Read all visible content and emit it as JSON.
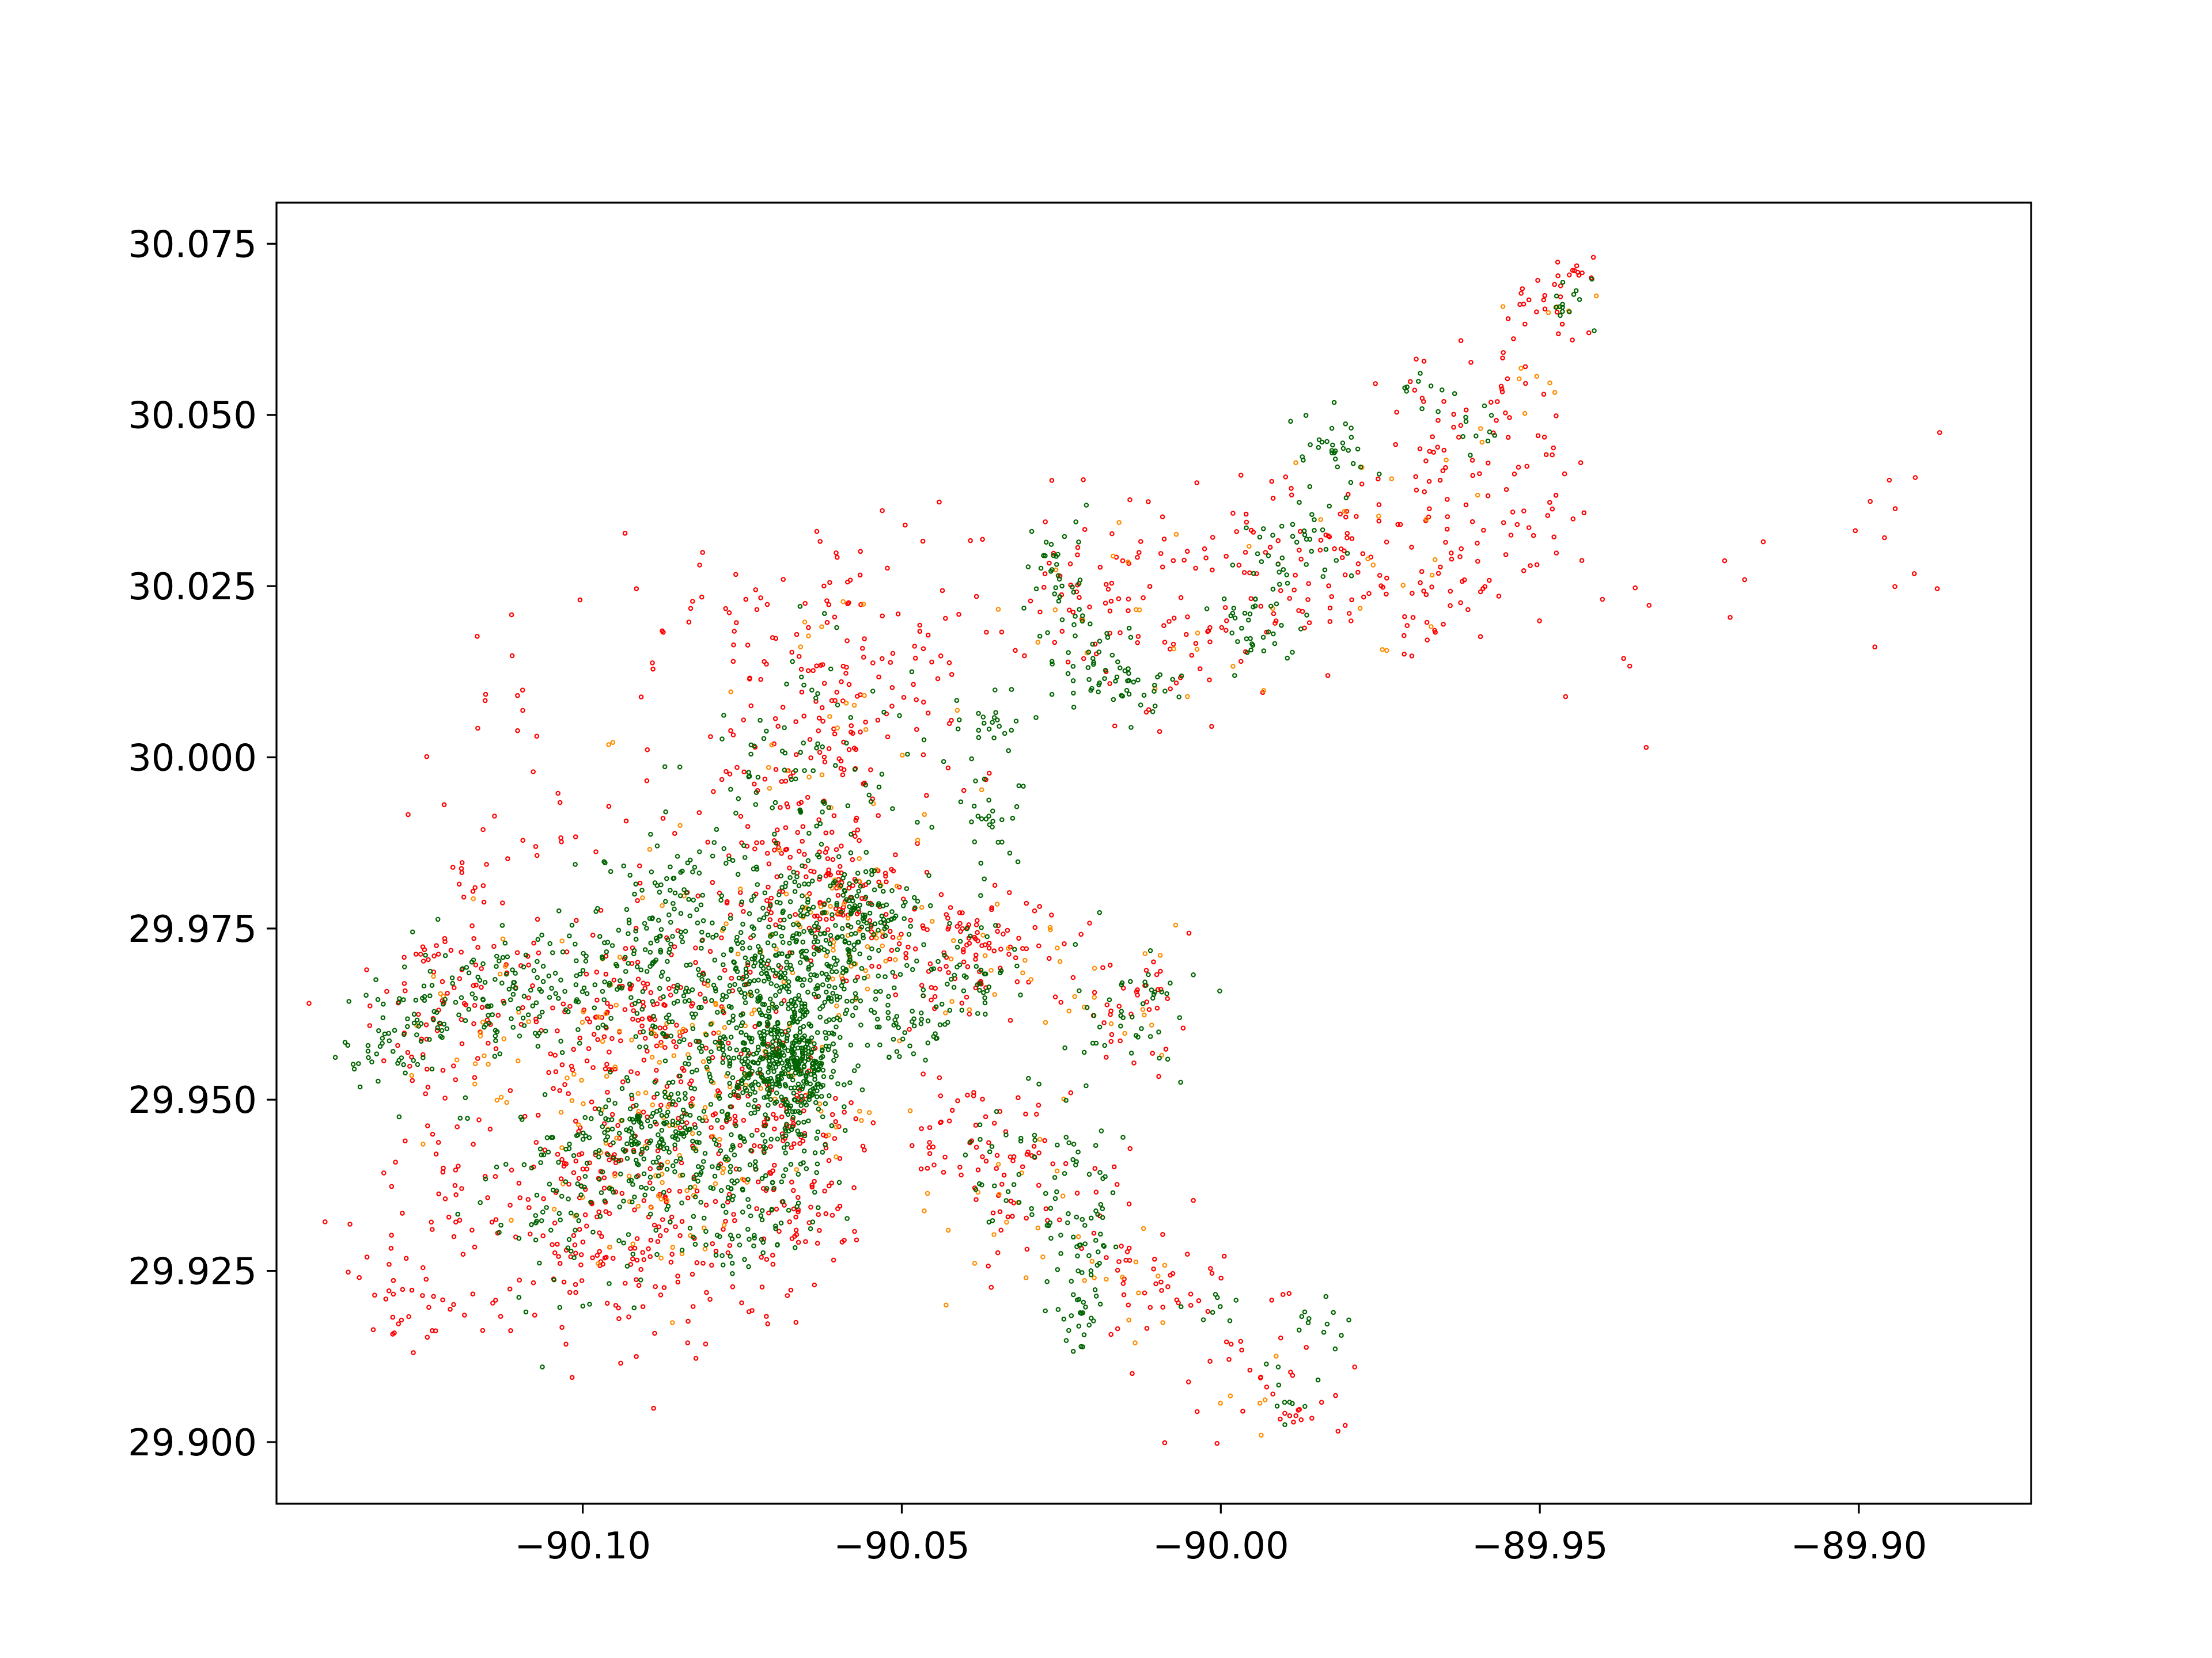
{
  "chart_data": {
    "type": "scatter",
    "title": "",
    "xlabel": "",
    "ylabel": "",
    "xlim": [
      -90.148,
      -89.873
    ],
    "ylim": [
      29.891,
      30.081
    ],
    "grid": false,
    "legend": "none",
    "x_ticks": [
      -90.1,
      -90.05,
      -90.0,
      -89.95,
      -89.9
    ],
    "x_tick_labels": [
      "−90.10",
      "−90.05",
      "−90.00",
      "−89.95",
      "−89.90"
    ],
    "y_ticks": [
      29.9,
      29.925,
      29.95,
      29.975,
      30.0,
      30.025,
      30.05,
      30.075
    ],
    "y_tick_labels": [
      "29.900",
      "29.925",
      "29.950",
      "29.975",
      "30.000",
      "30.025",
      "30.050",
      "30.075"
    ],
    "marker": "hollow circle",
    "colors": {
      "red": "#ff0000",
      "orange": "#ff8c00",
      "green": "#006400",
      "axes": "#000000",
      "background": "#ffffff"
    },
    "series": [
      {
        "color": "#006400",
        "clusters": [
          {
            "x": -90.068,
            "y": 29.955,
            "sx": 0.004,
            "sy": 0.005,
            "n": 420
          },
          {
            "x": -90.064,
            "y": 29.972,
            "sx": 0.006,
            "sy": 0.006,
            "n": 260
          },
          {
            "x": -90.078,
            "y": 29.962,
            "sx": 0.007,
            "sy": 0.007,
            "n": 240
          },
          {
            "x": -90.09,
            "y": 29.945,
            "sx": 0.006,
            "sy": 0.004,
            "n": 170
          },
          {
            "x": -90.075,
            "y": 29.938,
            "sx": 0.006,
            "sy": 0.005,
            "n": 110
          },
          {
            "x": -90.1,
            "y": 29.935,
            "sx": 0.007,
            "sy": 0.008,
            "n": 100
          },
          {
            "x": -90.11,
            "y": 29.965,
            "sx": 0.006,
            "sy": 0.004,
            "n": 90
          },
          {
            "x": -90.125,
            "y": 29.962,
            "sx": 0.004,
            "sy": 0.005,
            "n": 60
          },
          {
            "x": -90.095,
            "y": 29.97,
            "sx": 0.006,
            "sy": 0.004,
            "n": 90
          },
          {
            "x": -90.085,
            "y": 29.98,
            "sx": 0.006,
            "sy": 0.004,
            "n": 70
          },
          {
            "x": -90.055,
            "y": 29.978,
            "sx": 0.004,
            "sy": 0.003,
            "n": 70
          },
          {
            "x": -90.05,
            "y": 29.96,
            "sx": 0.005,
            "sy": 0.003,
            "n": 50
          },
          {
            "x": -90.04,
            "y": 29.968,
            "sx": 0.005,
            "sy": 0.003,
            "n": 45
          },
          {
            "x": -90.07,
            "y": 29.995,
            "sx": 0.008,
            "sy": 0.008,
            "n": 60
          },
          {
            "x": -90.06,
            "y": 30.005,
            "sx": 0.008,
            "sy": 0.01,
            "n": 40
          },
          {
            "x": -90.037,
            "y": 29.99,
            "sx": 0.003,
            "sy": 0.006,
            "n": 30
          },
          {
            "x": -90.036,
            "y": 30.005,
            "sx": 0.003,
            "sy": 0.002,
            "n": 20
          },
          {
            "x": -90.075,
            "y": 29.928,
            "sx": 0.004,
            "sy": 0.002,
            "n": 25
          },
          {
            "x": -90.032,
            "y": 29.94,
            "sx": 0.006,
            "sy": 0.006,
            "n": 40
          },
          {
            "x": -90.022,
            "y": 29.932,
            "sx": 0.003,
            "sy": 0.006,
            "n": 45
          },
          {
            "x": -90.021,
            "y": 29.92,
            "sx": 0.002,
            "sy": 0.004,
            "n": 30
          },
          {
            "x": -90.014,
            "y": 29.962,
            "sx": 0.005,
            "sy": 0.005,
            "n": 45
          },
          {
            "x": -90.001,
            "y": 29.92,
            "sx": 0.003,
            "sy": 0.002,
            "n": 8
          },
          {
            "x": -89.99,
            "y": 29.907,
            "sx": 0.002,
            "sy": 0.002,
            "n": 10
          },
          {
            "x": -89.984,
            "y": 29.918,
            "sx": 0.003,
            "sy": 0.003,
            "n": 12
          },
          {
            "x": -90.025,
            "y": 30.027,
            "sx": 0.002,
            "sy": 0.004,
            "n": 30
          },
          {
            "x": -90.02,
            "y": 30.014,
            "sx": 0.004,
            "sy": 0.004,
            "n": 45
          },
          {
            "x": -90.012,
            "y": 30.01,
            "sx": 0.004,
            "sy": 0.002,
            "n": 25
          },
          {
            "x": -89.995,
            "y": 30.02,
            "sx": 0.004,
            "sy": 0.004,
            "n": 35
          },
          {
            "x": -89.988,
            "y": 30.03,
            "sx": 0.004,
            "sy": 0.004,
            "n": 40
          },
          {
            "x": -89.983,
            "y": 30.045,
            "sx": 0.004,
            "sy": 0.003,
            "n": 30
          },
          {
            "x": -89.968,
            "y": 30.055,
            "sx": 0.002,
            "sy": 0.002,
            "n": 10
          },
          {
            "x": -89.96,
            "y": 30.048,
            "sx": 0.002,
            "sy": 0.002,
            "n": 10
          },
          {
            "x": -89.946,
            "y": 30.068,
            "sx": 0.002,
            "sy": 0.002,
            "n": 14
          },
          {
            "x": -90.133,
            "y": 29.955,
            "sx": 0.003,
            "sy": 0.004,
            "n": 20
          }
        ]
      },
      {
        "color": "#ff0000",
        "clusters": [
          {
            "x": -90.095,
            "y": 29.932,
            "sx": 0.012,
            "sy": 0.009,
            "n": 230
          },
          {
            "x": -90.09,
            "y": 29.96,
            "sx": 0.01,
            "sy": 0.008,
            "n": 190
          },
          {
            "x": -90.12,
            "y": 29.965,
            "sx": 0.007,
            "sy": 0.008,
            "n": 90
          },
          {
            "x": -90.06,
            "y": 29.98,
            "sx": 0.006,
            "sy": 0.004,
            "n": 90
          },
          {
            "x": -90.04,
            "y": 29.972,
            "sx": 0.008,
            "sy": 0.005,
            "n": 110
          },
          {
            "x": -90.07,
            "y": 29.99,
            "sx": 0.01,
            "sy": 0.01,
            "n": 120
          },
          {
            "x": -90.06,
            "y": 30.012,
            "sx": 0.008,
            "sy": 0.01,
            "n": 90
          },
          {
            "x": -90.08,
            "y": 30.02,
            "sx": 0.01,
            "sy": 0.006,
            "n": 30
          },
          {
            "x": -90.045,
            "y": 30.015,
            "sx": 0.008,
            "sy": 0.01,
            "n": 40
          },
          {
            "x": -90.07,
            "y": 29.948,
            "sx": 0.006,
            "sy": 0.005,
            "n": 80
          },
          {
            "x": -90.065,
            "y": 29.935,
            "sx": 0.005,
            "sy": 0.007,
            "n": 70
          },
          {
            "x": -90.125,
            "y": 29.935,
            "sx": 0.006,
            "sy": 0.01,
            "n": 40
          },
          {
            "x": -90.125,
            "y": 29.92,
            "sx": 0.005,
            "sy": 0.003,
            "n": 20
          },
          {
            "x": -90.11,
            "y": 29.985,
            "sx": 0.01,
            "sy": 0.008,
            "n": 30
          },
          {
            "x": -90.115,
            "y": 30.01,
            "sx": 0.006,
            "sy": 0.01,
            "n": 12
          },
          {
            "x": -90.04,
            "y": 29.945,
            "sx": 0.007,
            "sy": 0.004,
            "n": 45
          },
          {
            "x": -90.03,
            "y": 29.935,
            "sx": 0.006,
            "sy": 0.006,
            "n": 40
          },
          {
            "x": -90.01,
            "y": 29.925,
            "sx": 0.006,
            "sy": 0.005,
            "n": 40
          },
          {
            "x": -89.995,
            "y": 29.912,
            "sx": 0.006,
            "sy": 0.005,
            "n": 30
          },
          {
            "x": -89.99,
            "y": 29.903,
            "sx": 0.004,
            "sy": 0.002,
            "n": 10
          },
          {
            "x": -90.015,
            "y": 29.965,
            "sx": 0.007,
            "sy": 0.005,
            "n": 40
          },
          {
            "x": -90.02,
            "y": 30.025,
            "sx": 0.006,
            "sy": 0.006,
            "n": 50
          },
          {
            "x": -90.005,
            "y": 30.018,
            "sx": 0.007,
            "sy": 0.008,
            "n": 45
          },
          {
            "x": -89.99,
            "y": 30.03,
            "sx": 0.008,
            "sy": 0.007,
            "n": 60
          },
          {
            "x": -89.975,
            "y": 30.025,
            "sx": 0.008,
            "sy": 0.007,
            "n": 50
          },
          {
            "x": -89.96,
            "y": 30.03,
            "sx": 0.008,
            "sy": 0.008,
            "n": 50
          },
          {
            "x": -89.955,
            "y": 30.045,
            "sx": 0.006,
            "sy": 0.006,
            "n": 40
          },
          {
            "x": -89.965,
            "y": 30.052,
            "sx": 0.005,
            "sy": 0.004,
            "n": 20
          },
          {
            "x": -89.948,
            "y": 30.065,
            "sx": 0.004,
            "sy": 0.004,
            "n": 25
          },
          {
            "x": -89.945,
            "y": 30.071,
            "sx": 0.001,
            "sy": 0.001,
            "n": 8
          },
          {
            "x": -89.935,
            "y": 30.025,
            "sx": 0.01,
            "sy": 0.008,
            "n": 12
          },
          {
            "x": -89.905,
            "y": 30.03,
            "sx": 0.015,
            "sy": 0.006,
            "n": 10
          },
          {
            "x": -89.894,
            "y": 30.04,
            "sx": 0.002,
            "sy": 0.002,
            "n": 3
          },
          {
            "x": -89.888,
            "y": 30.047,
            "sx": 0.001,
            "sy": 0.001,
            "n": 1
          }
        ]
      },
      {
        "color": "#ff8c00",
        "clusters": [
          {
            "x": -90.08,
            "y": 29.955,
            "sx": 0.012,
            "sy": 0.01,
            "n": 90
          },
          {
            "x": -90.06,
            "y": 29.975,
            "sx": 0.008,
            "sy": 0.006,
            "n": 50
          },
          {
            "x": -90.09,
            "y": 29.935,
            "sx": 0.01,
            "sy": 0.008,
            "n": 50
          },
          {
            "x": -90.11,
            "y": 29.96,
            "sx": 0.01,
            "sy": 0.008,
            "n": 35
          },
          {
            "x": -90.065,
            "y": 30.0,
            "sx": 0.012,
            "sy": 0.012,
            "n": 35
          },
          {
            "x": -90.035,
            "y": 29.97,
            "sx": 0.006,
            "sy": 0.004,
            "n": 18
          },
          {
            "x": -90.03,
            "y": 29.935,
            "sx": 0.008,
            "sy": 0.007,
            "n": 20
          },
          {
            "x": -90.01,
            "y": 29.922,
            "sx": 0.006,
            "sy": 0.005,
            "n": 12
          },
          {
            "x": -90.015,
            "y": 29.965,
            "sx": 0.006,
            "sy": 0.005,
            "n": 15
          },
          {
            "x": -90.01,
            "y": 30.02,
            "sx": 0.01,
            "sy": 0.008,
            "n": 20
          },
          {
            "x": -89.975,
            "y": 30.035,
            "sx": 0.012,
            "sy": 0.01,
            "n": 20
          },
          {
            "x": -89.95,
            "y": 30.058,
            "sx": 0.006,
            "sy": 0.008,
            "n": 12
          },
          {
            "x": -89.994,
            "y": 29.905,
            "sx": 0.004,
            "sy": 0.004,
            "n": 6
          }
        ]
      }
    ]
  }
}
